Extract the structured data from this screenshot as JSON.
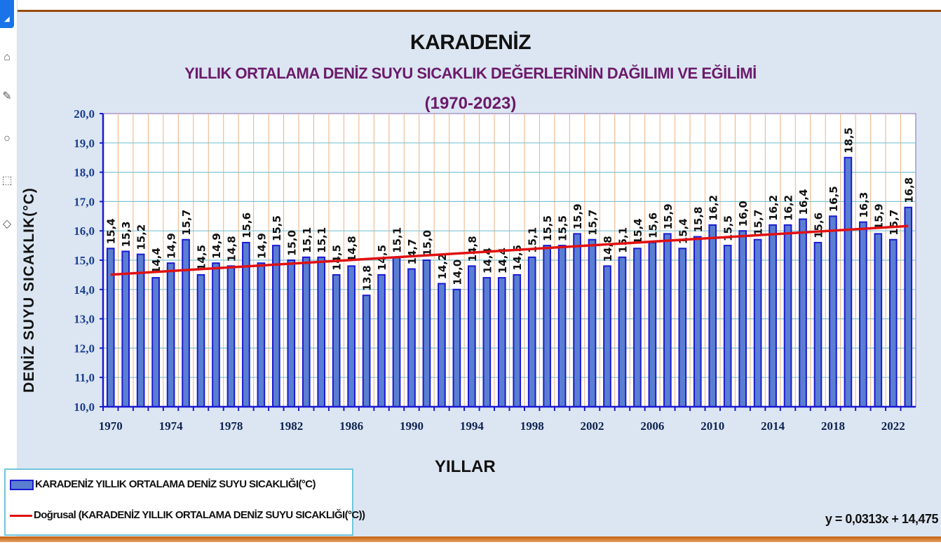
{
  "toolbar": {
    "icons": [
      "select-tool-icon",
      "shape-tool-icon",
      "pen-tool-icon",
      "lasso-tool-icon",
      "marquee-tool-icon",
      "eraser-tool-icon"
    ]
  },
  "chart": {
    "title": "KARADENİZ",
    "subtitle": "YILLIK ORTALAMA DENİZ SUYU SICAKLIK DEĞERLERİNİN  DAĞILIMI VE EĞİLİMİ",
    "period": "(1970-2023)",
    "ylabel": "DENİZ SUYU  SICAKLIK(°C)",
    "xlabel": "YILLAR",
    "legend": {
      "series": "KARADENİZ YILLIK ORTALAMA DENİZ SUYU SICAKLIĞI(°C)",
      "trend": "Doğrusal (KARADENİZ YILLIK ORTALAMA DENİZ SUYU SICAKLIĞI(°C))"
    },
    "equation": "y = 0,0313x + 14,475",
    "colors": {
      "bar": "#5b7fd0",
      "bar_border": "#1a1ad0",
      "trend": "#e01010",
      "hgrid": "#7fc4d4",
      "vgrid": "#f0b080",
      "axis": "#1a1ad0",
      "tick_label": "#1a3f8f"
    }
  },
  "chart_data": {
    "type": "bar",
    "title": "KARADENİZ — YILLIK ORTALAMA DENİZ SUYU SICAKLIK DEĞERLERİNİN DAĞILIMI VE EĞİLİMİ (1970-2023)",
    "xlabel": "YILLAR",
    "ylabel": "DENİZ SUYU SICAKLIK(°C)",
    "ylim": [
      10,
      20
    ],
    "yticks": [
      "10,0",
      "11,0",
      "12,0",
      "13,0",
      "14,0",
      "15,0",
      "16,0",
      "17,0",
      "18,0",
      "19,0",
      "20,0"
    ],
    "xtick_labels": [
      "1970",
      "1974",
      "1978",
      "1982",
      "1986",
      "1990",
      "1994",
      "1998",
      "2002",
      "2006",
      "2010",
      "2014",
      "2018",
      "2022"
    ],
    "grid": true,
    "legend_position": "bottom-left",
    "categories": [
      1970,
      1971,
      1972,
      1973,
      1974,
      1975,
      1976,
      1977,
      1978,
      1979,
      1980,
      1981,
      1982,
      1983,
      1984,
      1985,
      1986,
      1987,
      1988,
      1989,
      1990,
      1991,
      1992,
      1993,
      1994,
      1995,
      1996,
      1997,
      1998,
      1999,
      2000,
      2001,
      2002,
      2003,
      2004,
      2005,
      2006,
      2007,
      2008,
      2009,
      2010,
      2011,
      2012,
      2013,
      2014,
      2015,
      2016,
      2017,
      2018,
      2019,
      2020,
      2021,
      2022,
      2023
    ],
    "series": [
      {
        "name": "KARADENİZ YILLIK ORTALAMA DENİZ SUYU SICAKLIĞI(°C)",
        "type": "bar",
        "values": [
          15.4,
          15.3,
          15.2,
          14.4,
          14.9,
          15.7,
          14.5,
          14.9,
          14.8,
          15.6,
          14.9,
          15.5,
          15.0,
          15.1,
          15.1,
          14.5,
          14.8,
          13.8,
          14.5,
          15.1,
          14.7,
          15.0,
          14.2,
          14.0,
          14.8,
          14.4,
          14.4,
          14.5,
          15.1,
          15.5,
          15.5,
          15.9,
          15.7,
          14.8,
          15.1,
          15.4,
          15.6,
          15.9,
          15.4,
          15.8,
          16.2,
          15.5,
          16.0,
          15.7,
          16.2,
          16.2,
          16.4,
          15.6,
          16.5,
          18.5,
          16.3,
          15.9,
          15.7,
          16.8
        ]
      },
      {
        "name": "Doğrusal (KARADENİZ YILLIK ORTALAMA DENİZ SUYU SICAKLIĞI(°C))",
        "type": "line",
        "slope": 0.0313,
        "intercept": 14.475
      }
    ],
    "annotations": [
      "y = 0,0313x + 14,475"
    ]
  }
}
